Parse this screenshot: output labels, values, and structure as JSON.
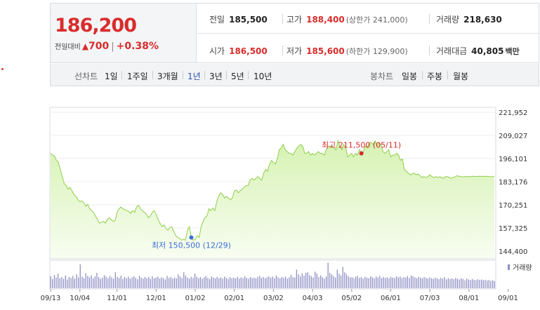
{
  "quote": {
    "price": "186,200",
    "change_label": "전일대비",
    "change_arrow": "▲",
    "change_value": "700",
    "change_sep": "|",
    "change_pct": "+0.38%",
    "prev_close": {
      "label": "전일",
      "value": "185,500"
    },
    "high": {
      "label": "고가",
      "value": "188,400",
      "sub": "(상한가 241,000)"
    },
    "volume": {
      "label": "거래량",
      "value": "218,630"
    },
    "open": {
      "label": "시가",
      "value": "186,500"
    },
    "low": {
      "label": "저가",
      "value": "185,600",
      "sub": "(하한가 129,900)"
    },
    "amount": {
      "label": "거래대금",
      "value": "40,805",
      "unit": "백만"
    }
  },
  "line_tabs": {
    "title": "선차트",
    "items": [
      "1일",
      "1주일",
      "3개월",
      "1년",
      "3년",
      "5년",
      "10년"
    ],
    "active": "1년"
  },
  "candle_tabs": {
    "title": "봉차트",
    "items": [
      "일봉",
      "주봉",
      "월봉"
    ]
  },
  "colors": {
    "up": "#d92c2c",
    "active_tab": "#2c4fa8",
    "line": "#8fcf4a",
    "fill_top": "#d6f2b3",
    "volume": "#8f8fc4",
    "low_marker": "#3a6fd8"
  },
  "chart_data": {
    "type": "area",
    "y_ticks": [
      "221,952",
      "209,027",
      "196,101",
      "183,176",
      "170,251",
      "157,325",
      "144,400"
    ],
    "ylim": [
      144400,
      221952
    ],
    "x_ticks": [
      "09/13",
      "10/04",
      "11/01",
      "12/01",
      "01/02",
      "02/01",
      "03/02",
      "04/03",
      "05/02",
      "06/01",
      "07/03",
      "08/01",
      "09/01"
    ],
    "x_tick_index": [
      0,
      15,
      34,
      54,
      74,
      94,
      114,
      134,
      154,
      174,
      194,
      214,
      234
    ],
    "max_annotation": "최고 211,500 (05/11)",
    "min_annotation": "최저 150,500 (12/29)",
    "max_index": 159,
    "min_index": 72,
    "volume_legend": "거래량",
    "price_series": [
      199000,
      198000,
      197500,
      195000,
      194000,
      190000,
      186000,
      182000,
      181000,
      179000,
      180000,
      178000,
      176000,
      175000,
      173000,
      172000,
      172500,
      171500,
      169500,
      170500,
      168000,
      167000,
      166000,
      164000,
      162000,
      160000,
      160500,
      161000,
      160000,
      162000,
      163000,
      162000,
      161000,
      161500,
      166000,
      168000,
      169000,
      168000,
      167500,
      167000,
      166500,
      165500,
      167000,
      166000,
      169000,
      170000,
      168000,
      167000,
      166000,
      165000,
      163000,
      164000,
      166000,
      167000,
      165000,
      162000,
      160000,
      158000,
      159000,
      157000,
      156000,
      157500,
      158000,
      155500,
      153000,
      152000,
      151500,
      150500,
      151000,
      150500,
      156000,
      158000,
      152000,
      150500,
      151000,
      153000,
      152000,
      158000,
      161000,
      163000,
      164000,
      168000,
      167000,
      168500,
      167000,
      172000,
      175000,
      177000,
      176000,
      174000,
      175000,
      174000,
      173000,
      174000,
      178000,
      178500,
      177000,
      178000,
      179000,
      180000,
      181000,
      181000,
      184000,
      185000,
      184000,
      185000,
      186000,
      185000,
      184000,
      188000,
      190000,
      189000,
      193000,
      195000,
      194000,
      193000,
      196000,
      201000,
      202000,
      204000,
      201000,
      200000,
      199000,
      199000,
      198000,
      200000,
      202000,
      203000,
      204000,
      203000,
      199000,
      199000,
      200000,
      198000,
      199000,
      198000,
      199000,
      200000,
      199000,
      199000,
      198000,
      201000,
      203000,
      203000,
      203000,
      202000,
      201000,
      206000,
      203000,
      201000,
      204000,
      202000,
      197000,
      198000,
      199000,
      197000,
      199000,
      198000,
      201000,
      199000,
      200000,
      203000,
      202000,
      205000,
      205000,
      204000,
      206000,
      203000,
      205000,
      204000,
      200000,
      199000,
      200000,
      201000,
      197000,
      198000,
      198000,
      199000,
      198000,
      195000,
      196000,
      190000,
      189000,
      188000,
      187000,
      187500,
      188000,
      187000,
      187500,
      186500,
      185500,
      186000,
      185500,
      186000,
      187000,
      186000,
      185500,
      186000,
      185500,
      186000,
      185500,
      185000,
      186000,
      186000,
      185500,
      185000,
      185500,
      186000,
      186500,
      186200,
      186000,
      185800,
      186000,
      186200,
      185900,
      186000,
      186200,
      186100,
      186000,
      186200,
      186100,
      186200,
      186000,
      186200,
      186100,
      186000,
      185900,
      186200
    ],
    "volume_series": [
      0.45,
      0.35,
      0.5,
      0.4,
      0.55,
      0.38,
      0.42,
      0.35,
      0.48,
      0.33,
      0.42,
      0.39,
      0.46,
      0.36,
      0.52,
      0.41,
      0.9,
      0.44,
      0.38,
      0.56,
      0.46,
      0.41,
      0.49,
      0.37,
      0.45,
      0.58,
      0.42,
      0.35,
      0.4,
      0.49,
      0.44,
      0.38,
      0.46,
      0.41,
      0.36,
      0.6,
      0.43,
      0.39,
      0.47,
      0.35,
      0.42,
      0.38,
      0.44,
      0.36,
      0.41,
      0.45,
      0.39,
      0.34,
      0.47,
      0.4,
      0.36,
      0.43,
      0.38,
      0.42,
      0.35,
      0.45,
      0.37,
      0.4,
      0.44,
      0.36,
      0.41,
      0.38,
      0.33,
      0.46,
      0.39,
      0.42,
      0.36,
      0.4,
      0.37,
      0.52,
      0.44,
      0.38,
      0.6,
      0.47,
      0.4,
      0.36,
      0.43,
      0.39,
      0.55,
      0.44,
      0.38,
      0.42,
      0.36,
      0.41,
      0.46,
      0.39,
      0.34,
      0.44,
      0.4,
      0.37,
      0.43,
      0.38,
      0.41,
      0.36,
      0.44,
      0.39,
      0.35,
      0.42,
      0.38,
      0.4,
      0.37,
      0.43,
      0.36,
      0.41,
      0.38,
      0.45,
      0.39,
      0.36,
      0.42,
      0.38,
      0.4,
      0.37,
      0.43,
      0.46,
      0.39,
      0.42,
      0.38,
      0.41,
      0.45,
      0.4,
      0.44,
      0.38,
      0.48,
      0.41,
      0.37,
      0.42,
      0.39,
      0.44,
      0.36,
      0.41,
      0.5,
      0.43,
      0.4,
      0.7,
      0.52,
      0.44,
      0.56,
      0.47,
      0.58,
      0.6,
      0.5,
      0.45,
      0.4,
      0.62,
      0.55,
      0.42,
      0.48,
      0.41,
      0.36,
      0.44,
      0.96,
      0.58,
      0.52,
      0.46,
      0.4,
      0.7,
      0.55,
      0.48,
      0.8,
      0.6,
      0.52,
      0.45,
      0.4,
      0.42,
      0.38,
      0.44,
      0.46,
      0.39,
      0.42,
      0.36,
      0.43,
      0.4,
      0.38,
      0.45,
      0.41,
      0.37,
      0.44,
      0.4,
      0.46,
      0.38,
      0.42,
      0.39,
      0.41,
      0.37,
      0.43,
      0.4,
      0.38,
      0.45,
      0.41,
      0.44,
      0.38,
      0.42,
      0.4,
      0.46,
      0.39,
      0.48,
      0.44,
      0.41,
      0.38,
      0.43,
      0.4,
      0.37,
      0.42,
      0.39,
      0.36,
      0.41,
      0.38,
      0.35,
      0.4,
      0.37,
      0.34,
      0.39,
      0.36,
      0.42,
      0.33,
      0.38,
      0.35,
      0.37,
      0.34,
      0.39,
      0.36,
      0.33,
      0.38,
      0.35,
      0.3,
      0.36,
      0.33,
      0.31,
      0.35,
      0.32,
      0.3,
      0.34,
      0.31,
      0.33,
      0.3,
      0.32,
      0.29,
      0.31,
      0.28,
      0.3,
      0.27
    ]
  }
}
